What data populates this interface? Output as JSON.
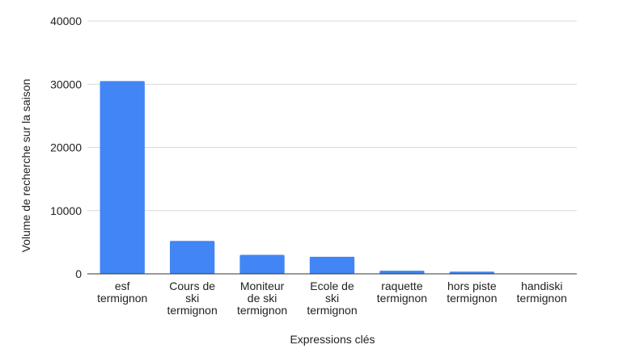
{
  "chart_data": {
    "type": "bar",
    "categories": [
      [
        "esf",
        "termignon"
      ],
      [
        "Cours de",
        "ski",
        "termignon"
      ],
      [
        "Moniteur",
        "de ski",
        "termignon"
      ],
      [
        "Ecole de",
        "ski",
        "termignon"
      ],
      [
        "raquette",
        "termignon"
      ],
      [
        "hors piste",
        "termignon"
      ],
      [
        "handiski",
        "termignon"
      ]
    ],
    "values": [
      30500,
      5200,
      3000,
      2700,
      500,
      350,
      0
    ],
    "xlabel": "Expressions clés",
    "ylabel": "Volume de recherche sur la saison",
    "ylim": [
      0,
      40000
    ],
    "yticks": [
      0,
      10000,
      20000,
      30000,
      40000
    ],
    "grid": true,
    "bar_color": "#4285F4",
    "grid_color": "#d9d9d9",
    "axis_color": "#333333"
  }
}
